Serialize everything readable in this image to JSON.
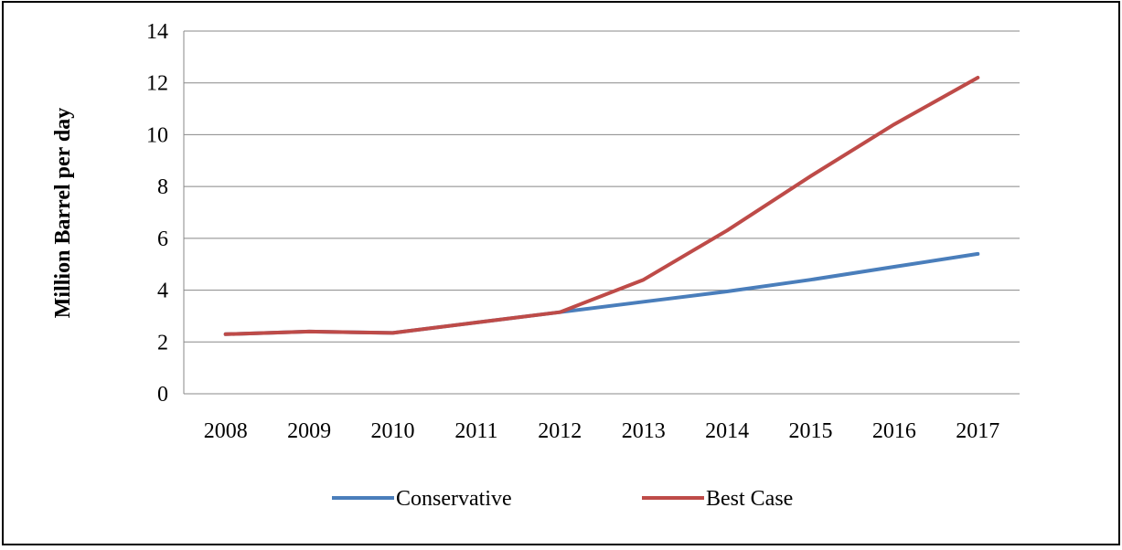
{
  "chart_data": {
    "type": "line",
    "title": "",
    "xlabel": "",
    "ylabel": "Million Barrel per day",
    "categories": [
      "2008",
      "2009",
      "2010",
      "2011",
      "2012",
      "2013",
      "2014",
      "2015",
      "2016",
      "2017"
    ],
    "ylim": [
      0,
      14
    ],
    "yticks": [
      "0",
      "2",
      "4",
      "6",
      "8",
      "10",
      "12",
      "14"
    ],
    "grid": "horizontal",
    "legend_position": "bottom",
    "series": [
      {
        "name": "Conservative",
        "color": "#4a7ebb",
        "values": [
          2.3,
          2.4,
          2.35,
          2.75,
          3.15,
          3.55,
          3.95,
          4.4,
          4.9,
          5.4
        ]
      },
      {
        "name": "Best Case",
        "color": "#be4b48",
        "values": [
          2.3,
          2.4,
          2.35,
          2.75,
          3.15,
          4.4,
          6.3,
          8.4,
          10.4,
          12.2
        ]
      }
    ]
  }
}
